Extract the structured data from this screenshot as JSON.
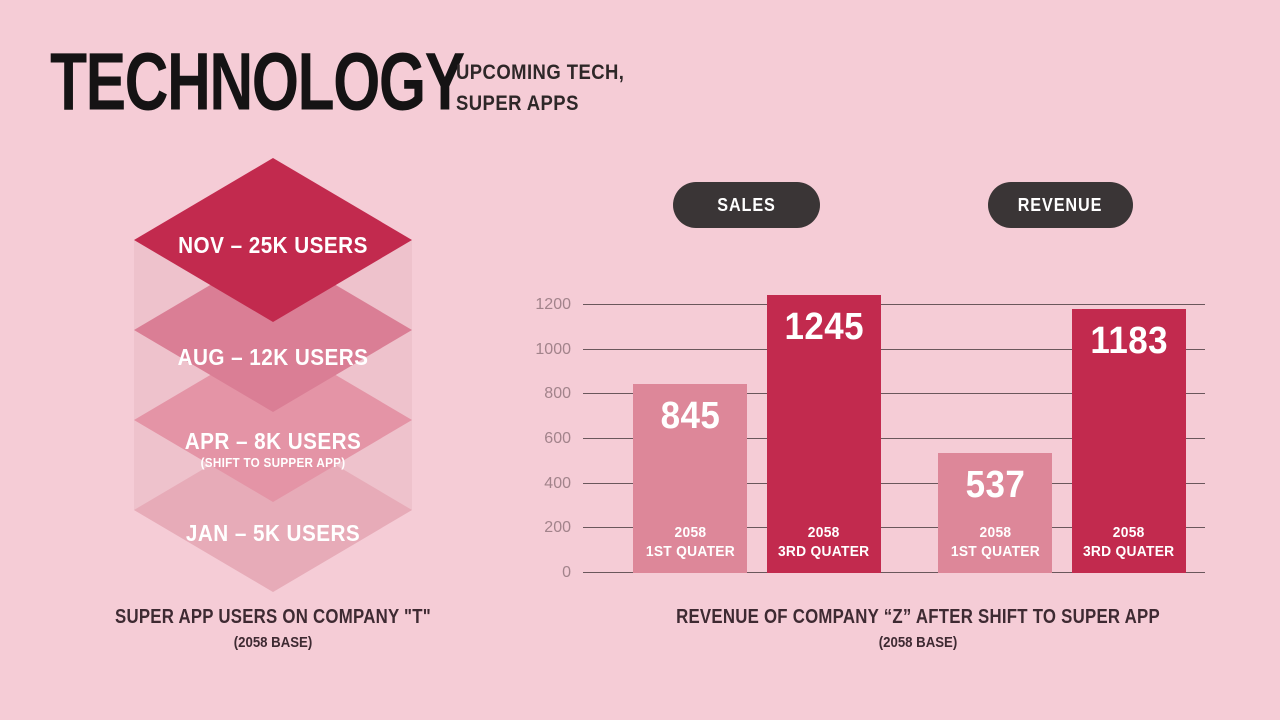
{
  "header": {
    "title": "TECHNOLOGY",
    "subtitle_line1": "UPCOMING TECH,",
    "subtitle_line2": "SUPER APPS"
  },
  "pyramid": {
    "type": "stacked-diamond-timeline",
    "layers": [
      {
        "label": "NOV – 25K USERS",
        "note": "",
        "color": "#c22a4e"
      },
      {
        "label": "AUG – 12K USERS",
        "note": "",
        "color": "#da7e95"
      },
      {
        "label": "APR – 8K USERS",
        "note": "(SHIFT TO SUPPER APP)",
        "color": "#e494a6"
      },
      {
        "label": "JAN – 5K USERS",
        "note": "",
        "color": "#e7abb8"
      }
    ],
    "skirt_color": "#eec2cc",
    "caption": "SUPER APP USERS ON COMPANY \"T\"",
    "caption_sub": "(2058 BASE)"
  },
  "chart_data": {
    "type": "bar",
    "title": "REVENUE OF COMPANY “Z” AFTER SHIFT TO SUPER APP",
    "subtitle": "(2058 BASE)",
    "legend": [
      "SALES",
      "REVENUE"
    ],
    "legend_position": "top",
    "y_ticks": [
      0,
      200,
      400,
      600,
      800,
      1000,
      1200
    ],
    "ylim": [
      0,
      1355
    ],
    "grid": true,
    "bars": [
      {
        "value": 845,
        "label_line1": "2058",
        "label_line2": "1ST QUATER",
        "group": "SALES",
        "color": "#dd8799"
      },
      {
        "value": 1245,
        "label_line1": "2058",
        "label_line2": "3RD QUATER",
        "group": "SALES",
        "color": "#c22a4e"
      },
      {
        "value": 537,
        "label_line1": "2058",
        "label_line2": "1ST QUATER",
        "group": "REVENUE",
        "color": "#dd8799"
      },
      {
        "value": 1183,
        "label_line1": "2058",
        "label_line2": "3RD QUATER",
        "group": "REVENUE",
        "color": "#c22a4e"
      }
    ]
  },
  "colors": {
    "background": "#f5ccd6",
    "accent_crimson": "#c22a4e",
    "accent_pink": "#dd8799",
    "pill_bg": "#3a3536",
    "pill_text": "#ffffff",
    "axis_label": "#a2838b",
    "gridline": "#6a575c",
    "title_text": "#151314",
    "caption_text": "#3e2a32"
  }
}
